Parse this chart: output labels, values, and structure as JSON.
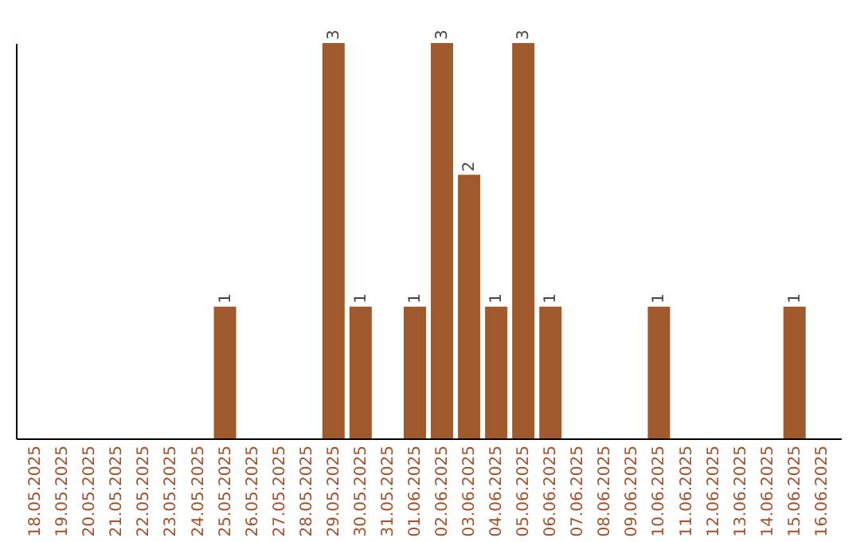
{
  "chart_data": {
    "type": "bar",
    "categories": [
      "18.05.2025",
      "19.05.2025",
      "20.05.2025",
      "21.05.2025",
      "22.05.2025",
      "23.05.2025",
      "24.05.2025",
      "25.05.2025",
      "26.05.2025",
      "27.05.2025",
      "28.05.2025",
      "29.05.2025",
      "30.05.2025",
      "31.05.2025",
      "01.06.2025",
      "02.06.2025",
      "03.06.2025",
      "04.06.2025",
      "05.06.2025",
      "06.06.2025",
      "07.06.2025",
      "08.06.2025",
      "09.06.2025",
      "10.06.2025",
      "11.06.2025",
      "12.06.2025",
      "13.06.2025",
      "14.06.2025",
      "15.06.2025",
      "16.06.2025"
    ],
    "values": [
      0,
      0,
      0,
      0,
      0,
      0,
      0,
      1,
      0,
      0,
      0,
      3,
      1,
      0,
      1,
      3,
      2,
      1,
      3,
      1,
      0,
      0,
      0,
      1,
      0,
      0,
      0,
      0,
      1,
      0
    ],
    "value_labels": [
      null,
      null,
      null,
      null,
      null,
      null,
      null,
      "1",
      null,
      null,
      null,
      "3",
      "1",
      null,
      "1",
      "3",
      "2",
      "1",
      "3",
      "1",
      null,
      null,
      null,
      "1",
      null,
      null,
      null,
      null,
      "1",
      null
    ],
    "color": "#a0592a",
    "ylim": [
      0,
      3
    ],
    "tick_labels": "x",
    "grid": false
  }
}
